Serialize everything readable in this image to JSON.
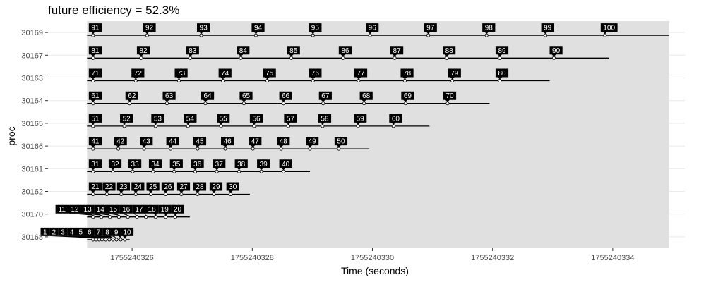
{
  "chart_data": {
    "type": "timeline",
    "title": "future efficiency = 52.3%",
    "xlabel": "Time (seconds)",
    "ylabel": "proc",
    "xlim": [
      1755240324.6,
      1755240335.2
    ],
    "x_ticks": [
      1755240326,
      1755240328,
      1755240330,
      1755240332,
      1755240334
    ],
    "x_tick_labels": [
      "1755240326",
      "1755240328",
      "1755240330",
      "1755240332",
      "1755240334"
    ],
    "y_categories": [
      "30169",
      "30167",
      "30163",
      "30164",
      "30165",
      "30166",
      "30161",
      "30162",
      "30170",
      "30168"
    ],
    "active_span": [
      1755240325.25,
      1755240334.94
    ],
    "grid": true,
    "colors": {
      "panel": "#e0e0e0",
      "grid": "#ebebeb",
      "label_fill": "#000000",
      "label_text": "#ffffff",
      "line": "#000000"
    },
    "processes": [
      {
        "proc": "30169",
        "line_start": 1755240325.25,
        "line_end": 1755240334.94,
        "tasks": [
          {
            "id": "91",
            "t": 1755240325.35
          },
          {
            "id": "92",
            "t": 1755240326.25
          },
          {
            "id": "93",
            "t": 1755240327.15
          },
          {
            "id": "94",
            "t": 1755240328.06
          },
          {
            "id": "95",
            "t": 1755240329.01
          },
          {
            "id": "96",
            "t": 1755240329.96
          },
          {
            "id": "97",
            "t": 1755240330.93
          },
          {
            "id": "98",
            "t": 1755240331.9
          },
          {
            "id": "99",
            "t": 1755240332.88
          },
          {
            "id": "100",
            "t": 1755240333.87
          }
        ]
      },
      {
        "proc": "30167",
        "line_start": 1755240325.25,
        "line_end": 1755240333.94,
        "tasks": [
          {
            "id": "81",
            "t": 1755240325.35
          },
          {
            "id": "82",
            "t": 1755240326.15
          },
          {
            "id": "83",
            "t": 1755240326.97
          },
          {
            "id": "84",
            "t": 1755240327.81
          },
          {
            "id": "85",
            "t": 1755240328.65
          },
          {
            "id": "86",
            "t": 1755240329.51
          },
          {
            "id": "87",
            "t": 1755240330.37
          },
          {
            "id": "88",
            "t": 1755240331.24
          },
          {
            "id": "89",
            "t": 1755240332.12
          },
          {
            "id": "90",
            "t": 1755240333.02
          }
        ]
      },
      {
        "proc": "30163",
        "line_start": 1755240325.25,
        "line_end": 1755240332.95,
        "tasks": [
          {
            "id": "71",
            "t": 1755240325.35
          },
          {
            "id": "72",
            "t": 1755240326.06
          },
          {
            "id": "73",
            "t": 1755240326.78
          },
          {
            "id": "74",
            "t": 1755240327.51
          },
          {
            "id": "75",
            "t": 1755240328.25
          },
          {
            "id": "76",
            "t": 1755240329.01
          },
          {
            "id": "77",
            "t": 1755240329.77
          },
          {
            "id": "78",
            "t": 1755240330.54
          },
          {
            "id": "79",
            "t": 1755240331.33
          },
          {
            "id": "80",
            "t": 1755240332.12
          }
        ]
      },
      {
        "proc": "30164",
        "line_start": 1755240325.25,
        "line_end": 1755240331.95,
        "tasks": [
          {
            "id": "61",
            "t": 1755240325.35
          },
          {
            "id": "62",
            "t": 1755240325.96
          },
          {
            "id": "63",
            "t": 1755240326.58
          },
          {
            "id": "64",
            "t": 1755240327.22
          },
          {
            "id": "65",
            "t": 1755240327.86
          },
          {
            "id": "66",
            "t": 1755240328.52
          },
          {
            "id": "67",
            "t": 1755240329.18
          },
          {
            "id": "68",
            "t": 1755240329.86
          },
          {
            "id": "69",
            "t": 1755240330.55
          },
          {
            "id": "70",
            "t": 1755240331.25
          }
        ]
      },
      {
        "proc": "30165",
        "line_start": 1755240325.25,
        "line_end": 1755240330.95,
        "tasks": [
          {
            "id": "51",
            "t": 1755240325.35
          },
          {
            "id": "52",
            "t": 1755240325.87
          },
          {
            "id": "53",
            "t": 1755240326.39
          },
          {
            "id": "54",
            "t": 1755240326.93
          },
          {
            "id": "55",
            "t": 1755240327.48
          },
          {
            "id": "56",
            "t": 1755240328.03
          },
          {
            "id": "57",
            "t": 1755240328.6
          },
          {
            "id": "58",
            "t": 1755240329.17
          },
          {
            "id": "59",
            "t": 1755240329.76
          },
          {
            "id": "60",
            "t": 1755240330.35
          }
        ]
      },
      {
        "proc": "30166",
        "line_start": 1755240325.25,
        "line_end": 1755240329.95,
        "tasks": [
          {
            "id": "41",
            "t": 1755240325.35
          },
          {
            "id": "42",
            "t": 1755240325.77
          },
          {
            "id": "43",
            "t": 1755240326.2
          },
          {
            "id": "44",
            "t": 1755240326.64
          },
          {
            "id": "45",
            "t": 1755240327.09
          },
          {
            "id": "46",
            "t": 1755240327.55
          },
          {
            "id": "47",
            "t": 1755240328.01
          },
          {
            "id": "48",
            "t": 1755240328.48
          },
          {
            "id": "49",
            "t": 1755240328.96
          },
          {
            "id": "50",
            "t": 1755240329.44
          }
        ]
      },
      {
        "proc": "30161",
        "line_start": 1755240325.25,
        "line_end": 1755240328.96,
        "tasks": [
          {
            "id": "31",
            "t": 1755240325.35
          },
          {
            "id": "32",
            "t": 1755240325.68
          },
          {
            "id": "33",
            "t": 1755240326.01
          },
          {
            "id": "34",
            "t": 1755240326.35
          },
          {
            "id": "35",
            "t": 1755240326.7
          },
          {
            "id": "36",
            "t": 1755240327.05
          },
          {
            "id": "37",
            "t": 1755240327.41
          },
          {
            "id": "38",
            "t": 1755240327.78
          },
          {
            "id": "39",
            "t": 1755240328.15
          },
          {
            "id": "40",
            "t": 1755240328.52
          }
        ]
      },
      {
        "proc": "30162",
        "line_start": 1755240325.25,
        "line_end": 1755240327.96,
        "tasks": [
          {
            "id": "21",
            "t": 1755240325.35
          },
          {
            "id": "22",
            "t": 1755240325.58
          },
          {
            "id": "23",
            "t": 1755240325.82
          },
          {
            "id": "24",
            "t": 1755240326.06
          },
          {
            "id": "25",
            "t": 1755240326.31
          },
          {
            "id": "26",
            "t": 1755240326.56
          },
          {
            "id": "27",
            "t": 1755240326.82
          },
          {
            "id": "28",
            "t": 1755240327.09
          },
          {
            "id": "29",
            "t": 1755240327.36
          },
          {
            "id": "30",
            "t": 1755240327.64
          }
        ]
      },
      {
        "proc": "30170",
        "line_start": 1755240325.25,
        "line_end": 1755240326.96,
        "tasks": [
          {
            "id": "11",
            "t": 1755240325.35
          },
          {
            "id": "12",
            "t": 1755240325.49
          },
          {
            "id": "13",
            "t": 1755240325.63
          },
          {
            "id": "14",
            "t": 1755240325.78
          },
          {
            "id": "15",
            "t": 1755240325.93
          },
          {
            "id": "16",
            "t": 1755240326.08
          },
          {
            "id": "17",
            "t": 1755240326.23
          },
          {
            "id": "18",
            "t": 1755240326.39
          },
          {
            "id": "19",
            "t": 1755240326.56
          },
          {
            "id": "20",
            "t": 1755240326.72
          }
        ]
      },
      {
        "proc": "30168",
        "line_start": 1755240325.25,
        "line_end": 1755240325.96,
        "tasks": [
          {
            "id": "1",
            "t": 1755240325.35
          },
          {
            "id": "2",
            "t": 1755240325.4
          },
          {
            "id": "3",
            "t": 1755240325.45
          },
          {
            "id": "4",
            "t": 1755240325.5
          },
          {
            "id": "5",
            "t": 1755240325.56
          },
          {
            "id": "6",
            "t": 1755240325.62
          },
          {
            "id": "7",
            "t": 1755240325.68
          },
          {
            "id": "8",
            "t": 1755240325.74
          },
          {
            "id": "9",
            "t": 1755240325.81
          },
          {
            "id": "10",
            "t": 1755240325.88
          }
        ]
      }
    ]
  }
}
